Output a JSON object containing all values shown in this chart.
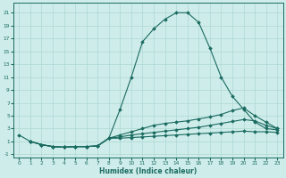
{
  "xlabel": "Humidex (Indice chaleur)",
  "ylabel": "",
  "bg_color": "#ceecea",
  "grid_color": "#aed8d4",
  "line_color": "#1a6b60",
  "xlim": [
    -0.5,
    23.5
  ],
  "ylim": [
    -1.5,
    22.5
  ],
  "xticks": [
    0,
    1,
    2,
    3,
    4,
    5,
    6,
    7,
    8,
    9,
    10,
    11,
    12,
    13,
    14,
    15,
    16,
    17,
    18,
    19,
    20,
    21,
    22,
    23
  ],
  "yticks": [
    -1,
    1,
    3,
    5,
    7,
    9,
    11,
    13,
    15,
    17,
    19,
    21
  ],
  "line1_x": [
    0,
    1,
    2,
    3,
    4,
    5,
    6,
    7,
    8,
    9,
    10,
    11,
    12,
    13,
    14,
    15,
    16,
    17,
    18,
    19,
    20,
    21,
    22,
    23
  ],
  "line1_y": [
    2,
    1,
    0.5,
    0.2,
    0.1,
    0.2,
    0.2,
    0.3,
    1.5,
    6,
    11,
    16.5,
    18.5,
    20,
    21,
    21,
    19.5,
    15.5,
    11,
    8,
    6,
    4,
    3,
    2.8
  ],
  "line2_x": [
    1,
    2,
    3,
    4,
    5,
    6,
    7,
    8,
    9,
    10,
    11,
    12,
    13,
    14,
    15,
    16,
    17,
    18,
    19,
    20,
    21,
    22,
    23
  ],
  "line2_y": [
    1,
    0.5,
    0.2,
    0.1,
    0.2,
    0.2,
    0.3,
    1.5,
    2,
    2.5,
    3,
    3.5,
    3.8,
    4,
    4.2,
    4.5,
    4.8,
    5.2,
    5.8,
    6.2,
    5,
    4,
    3
  ],
  "line3_x": [
    1,
    2,
    3,
    4,
    5,
    6,
    7,
    8,
    9,
    10,
    11,
    12,
    13,
    14,
    15,
    16,
    17,
    18,
    19,
    20,
    21,
    22,
    23
  ],
  "line3_y": [
    1,
    0.5,
    0.2,
    0.1,
    0.2,
    0.2,
    0.3,
    1.5,
    1.7,
    2,
    2.2,
    2.4,
    2.6,
    2.8,
    3.0,
    3.2,
    3.5,
    3.8,
    4.1,
    4.4,
    4.2,
    3.5,
    3.0
  ],
  "line4_x": [
    1,
    2,
    3,
    4,
    5,
    6,
    7,
    8,
    9,
    10,
    11,
    12,
    13,
    14,
    15,
    16,
    17,
    18,
    19,
    20,
    21,
    22,
    23
  ],
  "line4_y": [
    1,
    0.5,
    0.2,
    0.1,
    0.2,
    0.2,
    0.3,
    1.5,
    1.5,
    1.6,
    1.7,
    1.8,
    1.9,
    2.0,
    2.1,
    2.2,
    2.3,
    2.4,
    2.5,
    2.6,
    2.5,
    2.5,
    2.4
  ]
}
